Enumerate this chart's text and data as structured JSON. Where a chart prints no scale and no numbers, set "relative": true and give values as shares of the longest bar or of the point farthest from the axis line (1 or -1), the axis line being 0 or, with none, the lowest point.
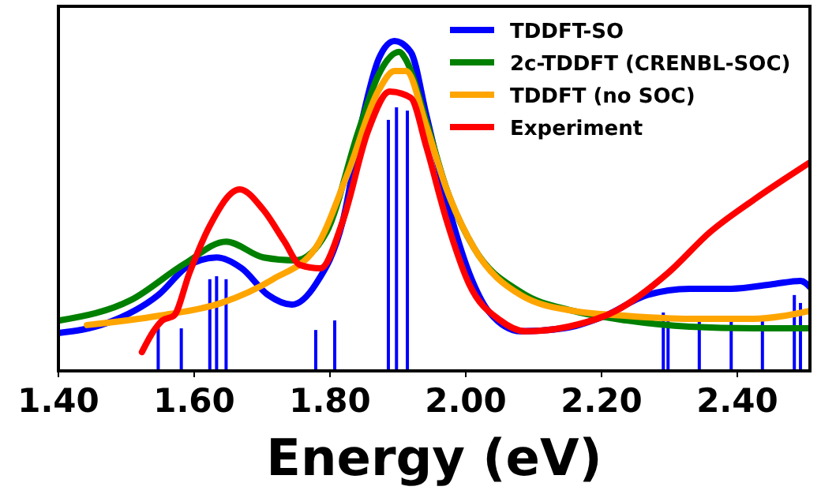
{
  "chart_data": {
    "type": "line",
    "xlabel": "Energy (eV)",
    "relative": true,
    "legend": "top right",
    "line_style": "solid",
    "marker": "none",
    "xlim": [
      1.4,
      2.507
    ],
    "xticks": [
      {
        "value": 1.4,
        "label": "1.40"
      },
      {
        "value": 1.6,
        "label": "1.60"
      },
      {
        "value": 1.8,
        "label": "1.80"
      },
      {
        "value": 2.0,
        "label": "2.00"
      },
      {
        "value": 2.2,
        "label": "2.20"
      },
      {
        "value": 2.4,
        "label": "2.40"
      }
    ],
    "series": [
      {
        "type": "bar",
        "color": "#0000ff",
        "x": [
          1.547,
          1.581,
          1.623,
          1.633,
          1.647,
          1.779,
          1.807,
          1.886,
          1.898,
          1.914,
          2.291,
          2.298,
          2.344,
          2.391,
          2.437,
          2.484,
          2.493
        ],
        "values": [
          0.129,
          0.129,
          0.278,
          0.287,
          0.278,
          0.124,
          0.153,
          0.761,
          0.799,
          0.789,
          0.177,
          0.158,
          0.158,
          0.153,
          0.158,
          0.23,
          0.206
        ]
      },
      {
        "name": "TDDFT-SO",
        "color": "#0000ff",
        "x": [
          1.4,
          1.47,
          1.547,
          1.593,
          1.633,
          1.67,
          1.709,
          1.744,
          1.779,
          1.819,
          1.849,
          1.872,
          1.895,
          1.919,
          1.942,
          1.972,
          2.005,
          2.035,
          2.081,
          2.144,
          2.205,
          2.267,
          2.33,
          2.391,
          2.453,
          2.493,
          2.507
        ],
        "values": [
          0.115,
          0.144,
          0.23,
          0.321,
          0.344,
          0.311,
          0.23,
          0.201,
          0.263,
          0.455,
          0.775,
          0.947,
          1.0,
          0.967,
          0.775,
          0.517,
          0.297,
          0.177,
          0.12,
          0.129,
          0.167,
          0.23,
          0.249,
          0.249,
          0.263,
          0.273,
          0.254
        ]
      },
      {
        "name": "2c-TDDFT (CRENBL-SOC)",
        "color": "#008000",
        "x": [
          1.402,
          1.507,
          1.586,
          1.647,
          1.702,
          1.749,
          1.795,
          1.842,
          1.872,
          1.902,
          1.912,
          1.942,
          1.972,
          2.012,
          2.081,
          2.158,
          2.237,
          2.33,
          2.423,
          2.507
        ],
        "values": [
          0.153,
          0.215,
          0.325,
          0.392,
          0.344,
          0.335,
          0.421,
          0.727,
          0.9,
          0.967,
          0.943,
          0.756,
          0.55,
          0.373,
          0.239,
          0.182,
          0.153,
          0.134,
          0.129,
          0.129
        ]
      },
      {
        "name": "TDDFT (no SOC)",
        "color": "#ffa500",
        "x": [
          1.442,
          1.547,
          1.64,
          1.716,
          1.779,
          1.826,
          1.872,
          1.895,
          1.912,
          1.942,
          1.972,
          2.012,
          2.081,
          2.158,
          2.237,
          2.33,
          2.423,
          2.507
        ],
        "values": [
          0.139,
          0.167,
          0.206,
          0.278,
          0.373,
          0.598,
          0.852,
          0.909,
          0.909,
          0.742,
          0.55,
          0.373,
          0.23,
          0.182,
          0.167,
          0.158,
          0.158,
          0.182
        ]
      },
      {
        "name": "Experiment",
        "color": "#ff0000",
        "x": [
          1.523,
          1.54,
          1.553,
          1.57,
          1.593,
          1.623,
          1.667,
          1.702,
          1.733,
          1.756,
          1.786,
          1.819,
          1.856,
          1.888,
          1.919,
          1.942,
          1.972,
          2.005,
          2.051,
          2.088,
          2.151,
          2.221,
          2.298,
          2.36,
          2.423,
          2.507
        ],
        "values": [
          0.057,
          0.12,
          0.153,
          0.167,
          0.297,
          0.44,
          0.55,
          0.488,
          0.392,
          0.321,
          0.311,
          0.455,
          0.727,
          0.847,
          0.828,
          0.679,
          0.455,
          0.263,
          0.153,
          0.12,
          0.134,
          0.182,
          0.297,
          0.421,
          0.517,
          0.632
        ]
      }
    ]
  }
}
